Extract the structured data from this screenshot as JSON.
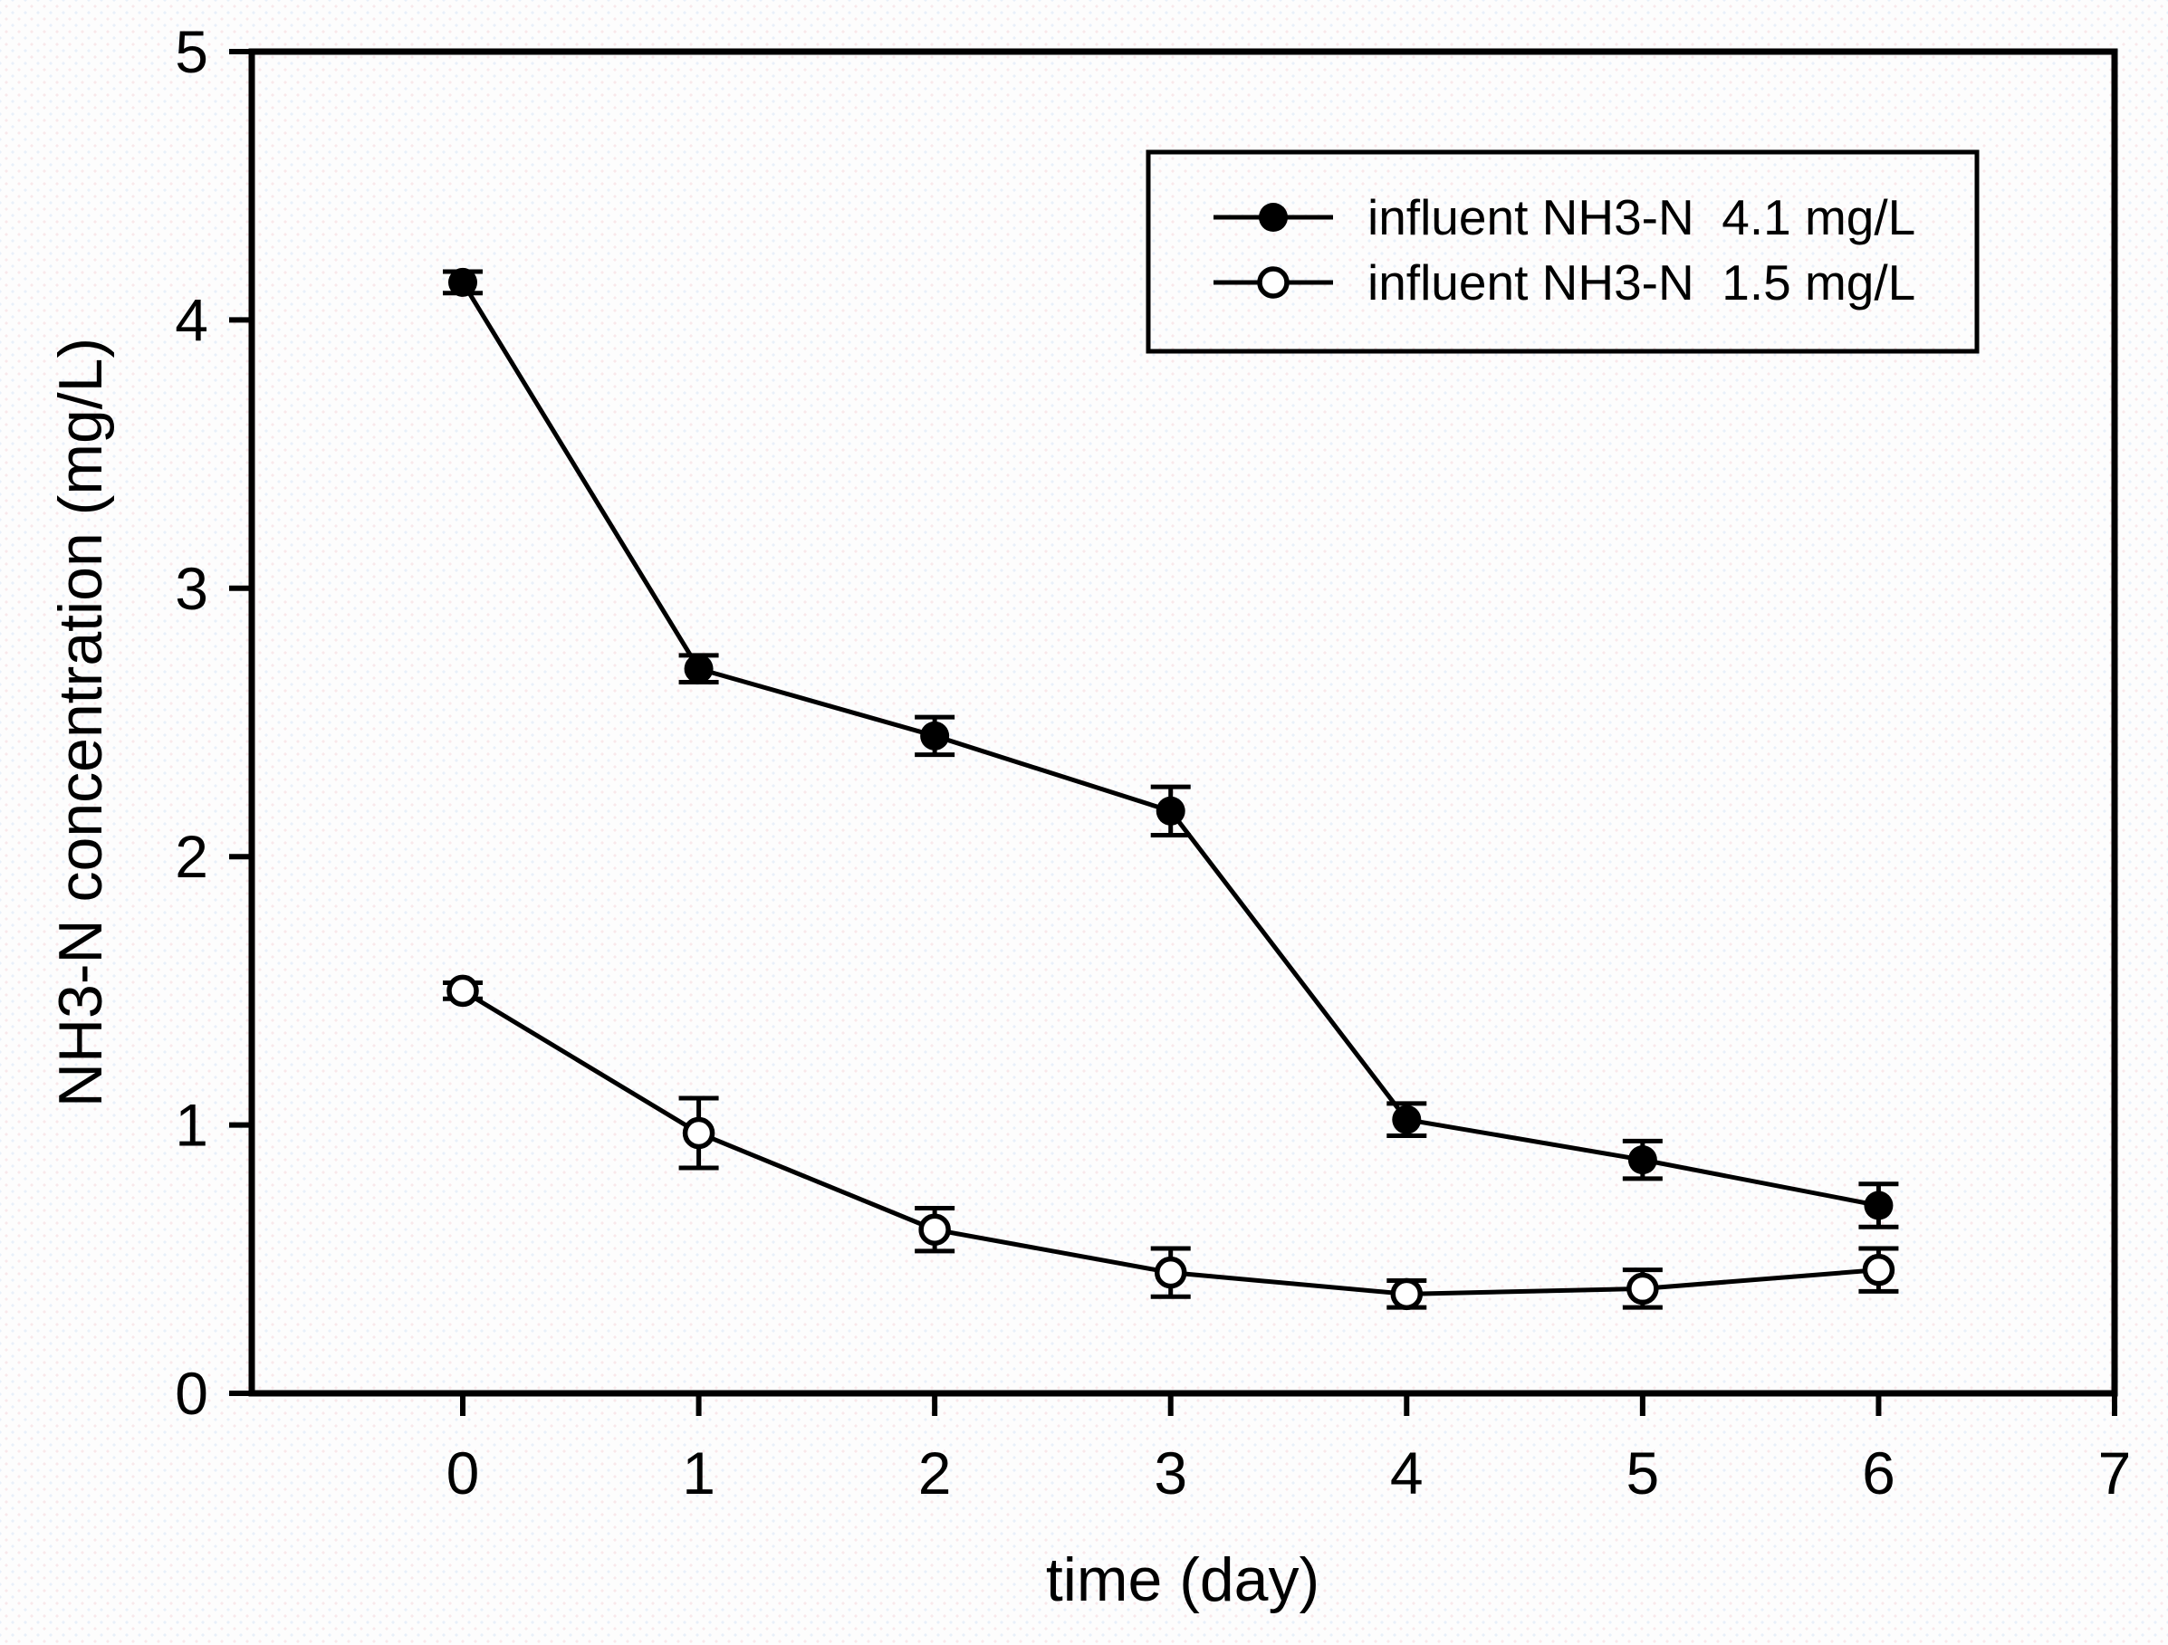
{
  "chart_data": {
    "type": "line",
    "title": "",
    "xlabel": "time (day)",
    "ylabel": "NH3-N concentration (mg/L)",
    "xlim": [
      -0.9,
      7
    ],
    "ylim": [
      0,
      5
    ],
    "x_ticks": [
      0,
      1,
      2,
      3,
      4,
      5,
      6,
      7
    ],
    "y_ticks": [
      0,
      1,
      2,
      3,
      4,
      5
    ],
    "grid": false,
    "legend_position": "upper right",
    "marker_color": "#000000",
    "x": [
      0,
      1,
      2,
      3,
      4,
      5,
      6
    ],
    "series": [
      {
        "name": "influent NH3-N  4.1 mg/L",
        "marker": "filled-circle",
        "color": "#000000",
        "values": [
          4.14,
          2.7,
          2.45,
          2.17,
          1.02,
          0.87,
          0.7
        ],
        "errors": [
          0.04,
          0.05,
          0.07,
          0.09,
          0.06,
          0.07,
          0.08
        ]
      },
      {
        "name": "influent NH3-N  1.5 mg/L",
        "marker": "open-circle",
        "color": "#000000",
        "values": [
          1.5,
          0.97,
          0.61,
          0.45,
          0.37,
          0.39,
          0.46
        ],
        "errors": [
          0.03,
          0.13,
          0.08,
          0.09,
          0.05,
          0.07,
          0.08
        ]
      }
    ]
  }
}
